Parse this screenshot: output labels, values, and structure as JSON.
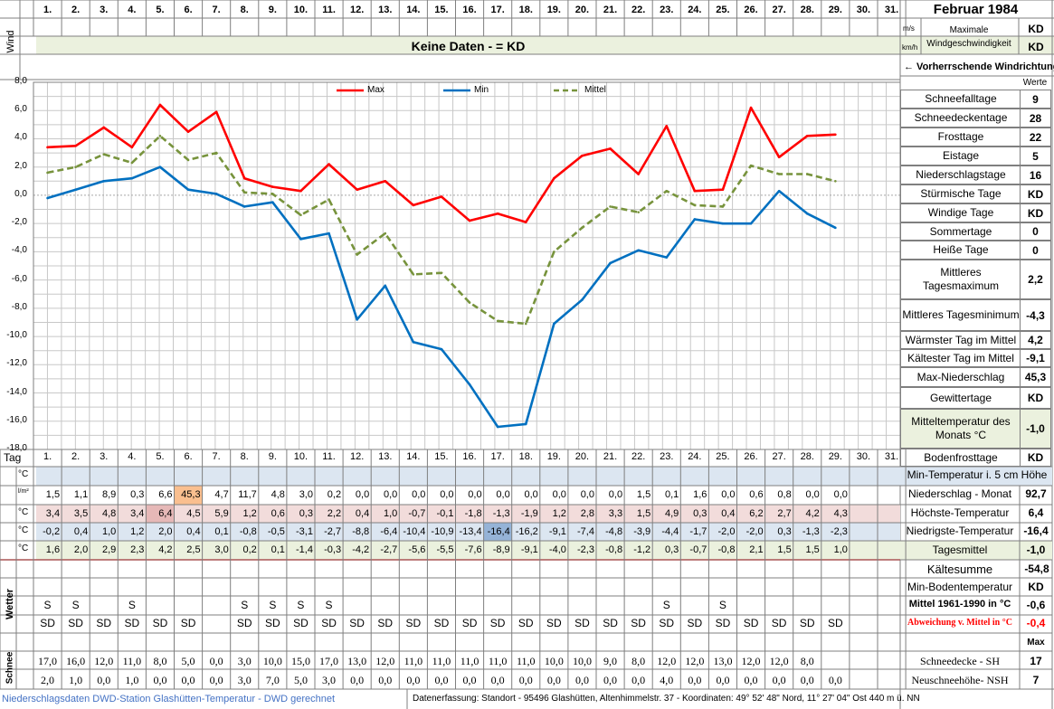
{
  "header": {
    "days": [
      "1.",
      "2.",
      "3.",
      "4.",
      "5.",
      "6.",
      "7.",
      "8.",
      "9.",
      "10.",
      "11.",
      "12.",
      "13.",
      "14.",
      "15.",
      "16.",
      "17.",
      "18.",
      "19.",
      "20.",
      "21.",
      "22.",
      "23.",
      "24.",
      "25.",
      "26.",
      "27.",
      "28.",
      "29.",
      "30.",
      "31."
    ],
    "month_title": "Februar 1984",
    "wind_label": "Wind",
    "unit_ms": "m/s",
    "unit_kmh": "km/h",
    "max_wind_label": "Maximale Windgeschwindigkeit",
    "max_wind_ms": "KD",
    "max_wind_kmh": "KD",
    "no_data_banner": "Keine Daten -  = KD",
    "wind_direction_label": "← Vorherrschende Windrichtung",
    "werte_label": "Werte"
  },
  "chart_data": {
    "type": "line",
    "x": [
      1,
      2,
      3,
      4,
      5,
      6,
      7,
      8,
      9,
      10,
      11,
      12,
      13,
      14,
      15,
      16,
      17,
      18,
      19,
      20,
      21,
      22,
      23,
      24,
      25,
      26,
      27,
      28,
      29
    ],
    "ylim": [
      -18,
      8
    ],
    "y_ticks": [
      "8,0",
      "6,0",
      "4,0",
      "2,0",
      "0,0",
      "-2,0",
      "-4,0",
      "-6,0",
      "-8,0",
      "-10,0",
      "-12,0",
      "-14,0",
      "-16,0",
      "-18,0"
    ],
    "grid": true,
    "legend_position": "top",
    "series": [
      {
        "name": "Max",
        "color": "#ff0000",
        "dash": false,
        "values": [
          3.4,
          3.5,
          4.8,
          3.4,
          6.4,
          4.5,
          5.9,
          1.2,
          0.6,
          0.3,
          2.2,
          0.4,
          1.0,
          -0.7,
          -0.1,
          -1.8,
          -1.3,
          -1.9,
          1.2,
          2.8,
          3.3,
          1.5,
          4.9,
          0.3,
          0.4,
          6.2,
          2.7,
          4.2,
          4.3
        ]
      },
      {
        "name": "Min",
        "color": "#0070c0",
        "dash": false,
        "values": [
          -0.2,
          0.4,
          1.0,
          1.2,
          2.0,
          0.4,
          0.1,
          -0.8,
          -0.5,
          -3.1,
          -2.7,
          -8.8,
          -6.4,
          -10.4,
          -10.9,
          -13.4,
          -16.4,
          -16.2,
          -9.1,
          -7.4,
          -4.8,
          -3.9,
          -4.4,
          -1.7,
          -2.0,
          -2.0,
          0.3,
          -1.3,
          -2.3
        ]
      },
      {
        "name": "Mittel",
        "color": "#77933c",
        "dash": true,
        "values": [
          1.6,
          2.0,
          2.9,
          2.3,
          4.2,
          2.5,
          3.0,
          0.2,
          0.1,
          -1.4,
          -0.3,
          -4.2,
          -2.7,
          -5.6,
          -5.5,
          -7.6,
          -8.9,
          -9.1,
          -4.0,
          -2.3,
          -0.8,
          -1.2,
          0.3,
          -0.7,
          -0.8,
          2.1,
          1.5,
          1.5,
          1.0
        ]
      }
    ]
  },
  "table": {
    "tag_label": "Tag",
    "days": [
      "1.",
      "2.",
      "3.",
      "4.",
      "5.",
      "6.",
      "7.",
      "8.",
      "9.",
      "10.",
      "11.",
      "12.",
      "13.",
      "14.",
      "15.",
      "16.",
      "17.",
      "18.",
      "19.",
      "20.",
      "21.",
      "22.",
      "23.",
      "24.",
      "25.",
      "26.",
      "27.",
      "28.",
      "29.",
      "30.",
      "31."
    ],
    "rows": [
      {
        "unit": "°C",
        "bg": "#dce6f1",
        "values": [
          "",
          "",
          "",
          "",
          "",
          "",
          "",
          "",
          "",
          "",
          "",
          "",
          "",
          "",
          "",
          "",
          "",
          "",
          "",
          "",
          "",
          "",
          "",
          "",
          "",
          "",
          "",
          "",
          "",
          "",
          ""
        ]
      },
      {
        "unit": "l/m²",
        "bg": "#ffffff",
        "values": [
          "1,5",
          "1,1",
          "8,9",
          "0,3",
          "6,6",
          "45,3",
          "4,7",
          "11,7",
          "4,8",
          "3,0",
          "0,2",
          "0,0",
          "0,0",
          "0,0",
          "0,0",
          "0,0",
          "0,0",
          "0,0",
          "0,0",
          "0,0",
          "0,0",
          "1,5",
          "0,1",
          "1,6",
          "0,0",
          "0,6",
          "0,8",
          "0,0",
          "0,0",
          "",
          ""
        ]
      },
      {
        "unit": "°C",
        "bg": "#f2dcdb",
        "values": [
          "3,4",
          "3,5",
          "4,8",
          "3,4",
          "6,4",
          "4,5",
          "5,9",
          "1,2",
          "0,6",
          "0,3",
          "2,2",
          "0,4",
          "1,0",
          "-0,7",
          "-0,1",
          "-1,8",
          "-1,3",
          "-1,9",
          "1,2",
          "2,8",
          "3,3",
          "1,5",
          "4,9",
          "0,3",
          "0,4",
          "6,2",
          "2,7",
          "4,2",
          "4,3",
          "",
          ""
        ]
      },
      {
        "unit": "°C",
        "bg": "#dce6f1",
        "values": [
          "-0,2",
          "0,4",
          "1,0",
          "1,2",
          "2,0",
          "0,4",
          "0,1",
          "-0,8",
          "-0,5",
          "-3,1",
          "-2,7",
          "-8,8",
          "-6,4",
          "-10,4",
          "-10,9",
          "-13,4",
          "-16,4",
          "-16,2",
          "-9,1",
          "-7,4",
          "-4,8",
          "-3,9",
          "-4,4",
          "-1,7",
          "-2,0",
          "-2,0",
          "0,3",
          "-1,3",
          "-2,3",
          "",
          ""
        ]
      },
      {
        "unit": "°C",
        "bg": "#ebf1de",
        "values": [
          "1,6",
          "2,0",
          "2,9",
          "2,3",
          "4,2",
          "2,5",
          "3,0",
          "0,2",
          "0,1",
          "-1,4",
          "-0,3",
          "-4,2",
          "-2,7",
          "-5,6",
          "-5,5",
          "-7,6",
          "-8,9",
          "-9,1",
          "-4,0",
          "-2,3",
          "-0,8",
          "-1,2",
          "0,3",
          "-0,7",
          "-0,8",
          "2,1",
          "1,5",
          "1,5",
          "1,0",
          "",
          ""
        ]
      }
    ],
    "highlight_max_precip": {
      "day_index": 5,
      "color": "#fabf8f"
    },
    "highlight_max_temp": {
      "day_index": 4,
      "color": "#e6b8b7"
    },
    "highlight_min_temp": {
      "day_index": 16,
      "color": "#95b3d7"
    },
    "wetter_label": "Wetter",
    "wetter_row1": [
      "S",
      "S",
      "",
      "S",
      "",
      "",
      "",
      "S",
      "S",
      "S",
      "S",
      "",
      "",
      "",
      "",
      "",
      "",
      "",
      "",
      "",
      "",
      "",
      "S",
      "",
      "S",
      "",
      "",
      "",
      "",
      "",
      ""
    ],
    "wetter_row2": [
      "SD",
      "SD",
      "SD",
      "SD",
      "SD",
      "SD",
      "",
      "SD",
      "SD",
      "SD",
      "SD",
      "SD",
      "SD",
      "SD",
      "SD",
      "SD",
      "SD",
      "SD",
      "SD",
      "SD",
      "SD",
      "SD",
      "SD",
      "SD",
      "SD",
      "SD",
      "SD",
      "SD",
      "SD",
      "",
      ""
    ],
    "schnee_label": "Schnee",
    "schnee_row1": [
      "17,0",
      "16,0",
      "12,0",
      "11,0",
      "8,0",
      "5,0",
      "0,0",
      "3,0",
      "10,0",
      "15,0",
      "17,0",
      "13,0",
      "12,0",
      "11,0",
      "11,0",
      "11,0",
      "11,0",
      "11,0",
      "10,0",
      "10,0",
      "9,0",
      "8,0",
      "12,0",
      "12,0",
      "13,0",
      "12,0",
      "12,0",
      "8,0",
      "",
      "",
      ""
    ],
    "schnee_row2": [
      "2,0",
      "1,0",
      "0,0",
      "1,0",
      "0,0",
      "0,0",
      "0,0",
      "3,0",
      "7,0",
      "5,0",
      "3,0",
      "0,0",
      "0,0",
      "0,0",
      "0,0",
      "0,0",
      "0,0",
      "0,0",
      "0,0",
      "0,0",
      "0,0",
      "0,0",
      "4,0",
      "0,0",
      "0,0",
      "0,0",
      "0,0",
      "0,0",
      "0,0",
      "",
      ""
    ]
  },
  "stats": [
    {
      "label": "Schneefalltage",
      "value": "9"
    },
    {
      "label": "Schneedeckentage",
      "value": "28"
    },
    {
      "label": "Frosttage",
      "value": "22"
    },
    {
      "label": "Eistage",
      "value": "5"
    },
    {
      "label": "Niederschlagstage",
      "value": "16"
    },
    {
      "label": "Stürmische Tage",
      "value": "KD"
    },
    {
      "label": "Windige Tage",
      "value": "KD"
    },
    {
      "label": "Sommertage",
      "value": "0"
    },
    {
      "label": "Heiße Tage",
      "value": "0"
    },
    {
      "label": "Mittleres Tagesmaximum",
      "value": "2,2"
    },
    {
      "label": "Mittleres Tagesminimum",
      "value": "-4,3"
    },
    {
      "label": "Wärmster Tag im Mittel",
      "value": "4,2"
    },
    {
      "label": "Kältester Tag im Mittel",
      "value": "-9,1"
    },
    {
      "label": "Max-Niederschlag",
      "value": "45,3"
    },
    {
      "label": "Gewittertage",
      "value": "KD"
    },
    {
      "label": "Mitteltemperatur des Monats °C",
      "value": "-1,0"
    },
    {
      "label": "Bodenfrosttage",
      "value": "KD"
    }
  ],
  "lower_stats": {
    "min_temp_5cm": "Min-Temperatur i. 5 cm Höhe",
    "niederschlag_monat_label": "Niederschlag - Monat",
    "niederschlag_monat": "92,7",
    "hoechste_label": "Höchste-Temperatur",
    "hoechste": "6,4",
    "niedrigste_label": "Niedrigste-Temperatur",
    "niedrigste": "-16,4",
    "tagesmittel_label": "Tagesmittel",
    "tagesmittel": "-1,0",
    "kaeltesumme_label": "Kältesumme",
    "kaeltesumme": "-54,8",
    "min_boden_label": "Min-Bodentemperatur",
    "min_boden": "KD",
    "mittel_6190_label": "Mittel 1961-1990 in °C",
    "mittel_6190": "-0,6",
    "abweichung_label": "Abweichung v. Mittel in °C",
    "abweichung": "-0,4",
    "max_label": "Max",
    "schneedecke_label": "Schneedecke -   SH",
    "schneedecke": "17",
    "neuschnee_label": "Neuschneehöhe- NSH",
    "neuschnee": "7"
  },
  "footer": {
    "left": "Niederschlagsdaten DWD-Station Glashütten-Temperatur -   DWD gerechnet",
    "right": "Datenerfassung: Standort -  95496  Glashütten, Altenhimmelstr. 37 - Koordinaten:  49° 52' 48\" Nord,   11° 27' 04\" Ost   440 m ü. NN"
  }
}
